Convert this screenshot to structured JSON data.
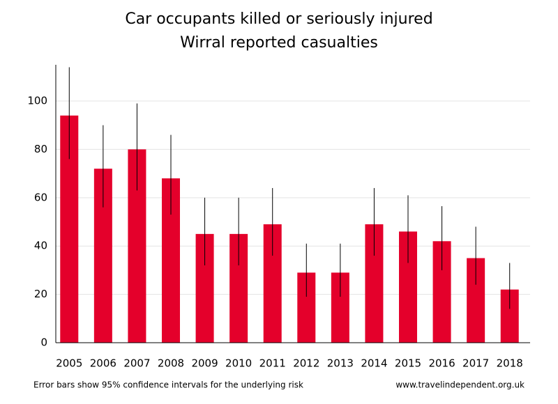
{
  "chart_data": {
    "type": "bar",
    "title": "Car occupants killed or seriously injured",
    "subtitle": "Wirral reported casualties",
    "categories": [
      "2005",
      "2006",
      "2007",
      "2008",
      "2009",
      "2010",
      "2011",
      "2012",
      "2013",
      "2014",
      "2015",
      "2016",
      "2017",
      "2018"
    ],
    "values": [
      94,
      72,
      80,
      68,
      45,
      45,
      49,
      29,
      29,
      49,
      46,
      42,
      35,
      22
    ],
    "ci_low": [
      76,
      56,
      63,
      53,
      32,
      32,
      36,
      19,
      19,
      36,
      33,
      30,
      24,
      14
    ],
    "ci_high": [
      114,
      90,
      99,
      86,
      60,
      60,
      64,
      41,
      41,
      64,
      61,
      56.5,
      48,
      33
    ],
    "color": "#e4002b",
    "ylim": [
      0,
      115
    ],
    "yticks": [
      0,
      20,
      40,
      60,
      80,
      100
    ],
    "grid": true,
    "footnote": "Error bars show 95% confidence intervals for the underlying risk",
    "source": "www.travelindependent.org.uk"
  }
}
